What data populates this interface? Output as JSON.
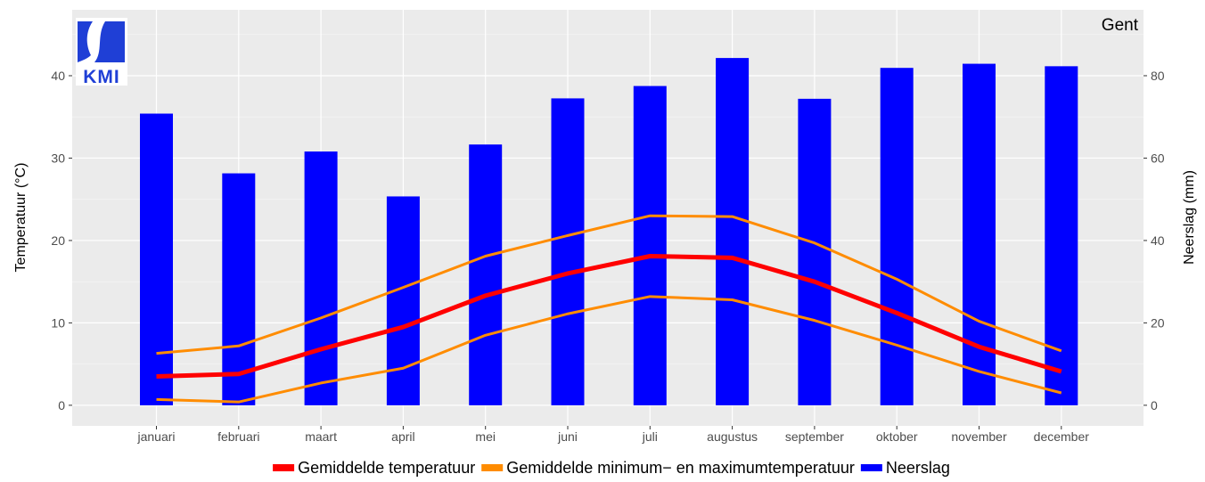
{
  "chart_data": {
    "type": "bar+line",
    "station": "Gent",
    "logo_text": "KMI",
    "categories": [
      "januari",
      "februari",
      "maart",
      "april",
      "mei",
      "juni",
      "juli",
      "augustus",
      "september",
      "oktober",
      "november",
      "december"
    ],
    "ylabel_left": "Temperatuur (°C)",
    "ylabel_right": "Neerslag (mm)",
    "ylim_left": [
      -2.5,
      48
    ],
    "ylim_right": [
      -5,
      96
    ],
    "yticks_left": [
      0,
      10,
      20,
      30,
      40
    ],
    "yticks_right": [
      0,
      20,
      40,
      60,
      80
    ],
    "grid": true,
    "legend_position": "bottom",
    "bars": {
      "name": "Neerslag",
      "color": "#0000ff",
      "axis": "right",
      "values": [
        70.8,
        56.3,
        61.6,
        50.7,
        63.3,
        74.5,
        77.5,
        84.3,
        74.4,
        81.9,
        82.9,
        82.3
      ]
    },
    "lines": [
      {
        "name": "Gemiddelde temperatuur",
        "color": "#ff0000",
        "axis": "left",
        "values": [
          3.5,
          3.8,
          6.8,
          9.5,
          13.3,
          16.0,
          18.1,
          17.9,
          15.0,
          11.2,
          7.1,
          4.1
        ]
      },
      {
        "name": "Gemiddelde minimum− en maximumtemperatuur",
        "color": "#ff8c00",
        "axis": "left",
        "values": [
          6.3,
          7.2,
          10.6,
          14.3,
          18.1,
          20.6,
          23.0,
          22.9,
          19.7,
          15.3,
          10.2,
          6.6
        ]
      },
      {
        "name": "",
        "color": "#ff8c00",
        "axis": "left",
        "values": [
          0.7,
          0.4,
          2.7,
          4.5,
          8.5,
          11.1,
          13.2,
          12.8,
          10.3,
          7.3,
          4.1,
          1.5
        ]
      }
    ],
    "legend": [
      {
        "label": "Gemiddelde temperatuur",
        "color": "#ff0000"
      },
      {
        "label": "Gemiddelde minimum− en maximumtemperatuur",
        "color": "#ff8c00"
      },
      {
        "label": "Neerslag",
        "color": "#0000ff"
      }
    ]
  }
}
